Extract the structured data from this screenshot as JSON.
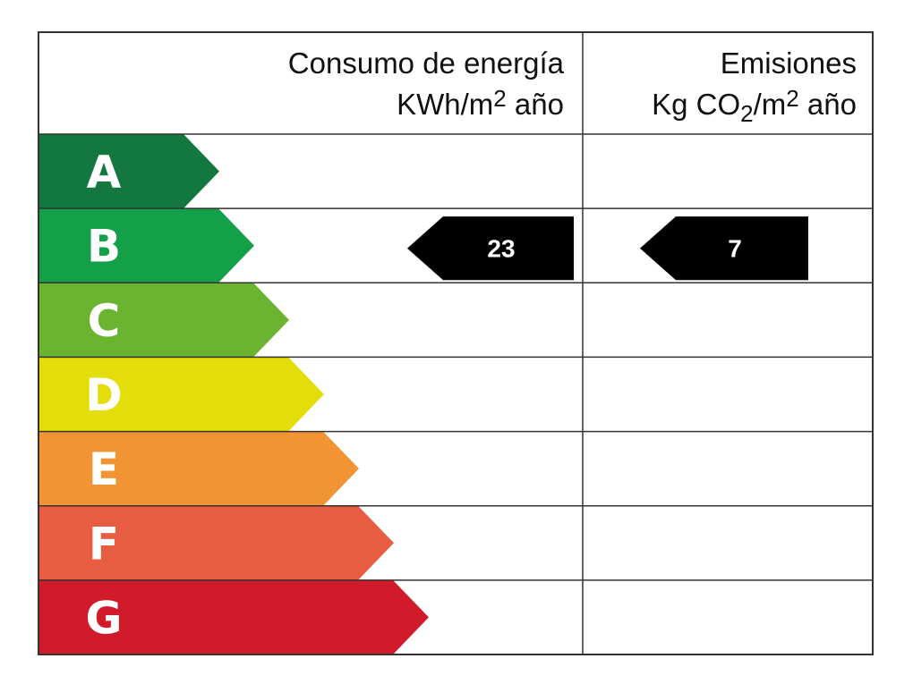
{
  "header": {
    "consumption": {
      "title": "Consumo de energía",
      "unit": [
        "KWh/m",
        "2",
        " año"
      ]
    },
    "emissions": {
      "title": "Emisiones",
      "unit": [
        "Kg CO",
        "2",
        "/m",
        "2",
        " año"
      ]
    }
  },
  "ratings": [
    {
      "letter": "A",
      "color": "#12783f"
    },
    {
      "letter": "B",
      "color": "#13a048",
      "consumption": 23,
      "emissions": 7
    },
    {
      "letter": "C",
      "color": "#6ab42f"
    },
    {
      "letter": "D",
      "color": "#e3dd0a"
    },
    {
      "letter": "E",
      "color": "#f29434"
    },
    {
      "letter": "F",
      "color": "#e85c41"
    },
    {
      "letter": "G",
      "color": "#d11a2a"
    }
  ]
}
